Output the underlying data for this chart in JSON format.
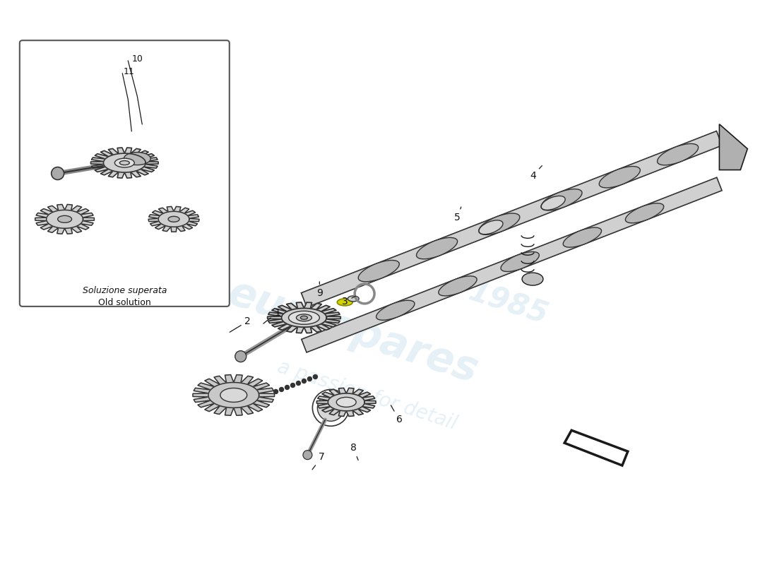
{
  "bg_color": "#ffffff",
  "line_color": "#1a1a1a",
  "gear_fill": "#cccccc",
  "gear_edge": "#333333",
  "shaft_fill": "#c8c8c8",
  "shaft_edge": "#2a2a2a",
  "highlight_color": "#d4d400",
  "box_label_line1": "Soluzione superata",
  "box_label_line2": "Old solution",
  "watermark1": "eurospares",
  "watermark2": "a passion for detail",
  "watermark3": "1985",
  "wm_color": "#5599cc",
  "wm_alpha": 0.15
}
